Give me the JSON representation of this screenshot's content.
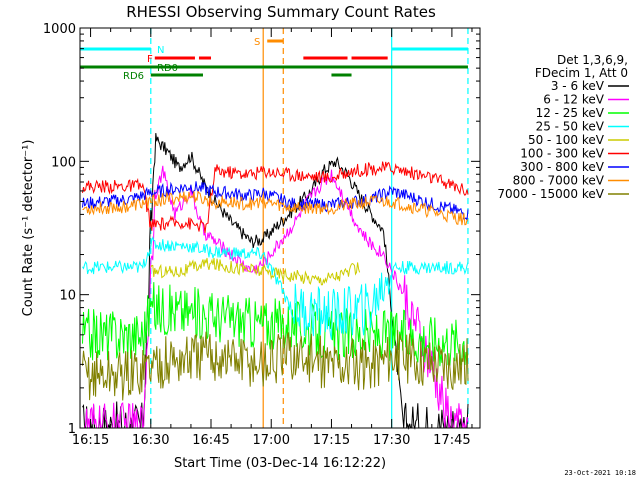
{
  "chart_data": {
    "type": "line",
    "title": "RHESSI Observing Summary Count Rates",
    "xlabel": "Start Time (03-Dec-14 16:12:22)",
    "ylabel": "Count Rate (s⁻¹ detector⁻¹)",
    "xlim": [
      "16:12:22",
      "17:52:00"
    ],
    "ylim": [
      1,
      1000
    ],
    "yscale": "log",
    "x_ticks": [
      "16:15",
      "16:30",
      "16:45",
      "17:00",
      "17:15",
      "17:30",
      "17:45"
    ],
    "y_ticks": [
      "1",
      "10",
      "100",
      "1000"
    ],
    "footer_date": "23-Oct-2021 10:18",
    "legend_header": [
      "Det 1,3,6,9,",
      "FDecim 1, Att 0"
    ],
    "legend_placement": "right",
    "series": [
      {
        "name": "3 - 6 keV",
        "color": "#000000",
        "x": [
          "16:13",
          "16:20",
          "16:28",
          "16:31",
          "16:34",
          "16:37",
          "16:40",
          "16:43",
          "16:46",
          "16:50",
          "16:55",
          "16:58",
          "17:06",
          "17:10",
          "17:13",
          "17:16",
          "17:19",
          "17:22",
          "17:25",
          "17:28",
          "17:33",
          "17:45",
          "17:49"
        ],
        "values": [
          1,
          1,
          1,
          150,
          120,
          90,
          110,
          70,
          50,
          35,
          25,
          26,
          45,
          60,
          85,
          100,
          80,
          55,
          40,
          30,
          1,
          1,
          1
        ]
      },
      {
        "name": "6 - 12 keV",
        "color": "#ff00ff",
        "x": [
          "16:13",
          "16:20",
          "16:28",
          "16:31",
          "16:33",
          "16:36",
          "16:40",
          "16:43",
          "16:46",
          "16:50",
          "16:55",
          "16:58",
          "17:06",
          "17:09",
          "17:12",
          "17:15",
          "17:18",
          "17:21",
          "17:24",
          "17:28",
          "17:33",
          "17:45",
          "17:49"
        ],
        "values": [
          1,
          1,
          1,
          55,
          85,
          40,
          60,
          30,
          25,
          20,
          15,
          17,
          35,
          50,
          65,
          80,
          55,
          35,
          25,
          20,
          10,
          1,
          1
        ]
      },
      {
        "name": "12 - 25 keV",
        "color": "#00ff00",
        "x": [
          "16:13",
          "16:28",
          "16:30",
          "16:45",
          "16:58",
          "17:05",
          "17:13",
          "17:25",
          "17:30",
          "17:45",
          "17:49"
        ],
        "values": [
          5,
          5,
          8,
          7,
          6,
          6,
          5,
          5,
          5,
          4.5,
          4.5
        ]
      },
      {
        "name": "25 - 50 keV",
        "color": "#00ffff",
        "x": [
          "16:13",
          "16:28",
          "16:30",
          "16:40",
          "16:45",
          "16:58",
          "17:05",
          "17:15",
          "17:25",
          "17:30",
          "17:45",
          "17:49"
        ],
        "values": [
          16,
          16,
          24,
          23,
          21,
          20,
          8,
          7,
          8,
          16,
          16,
          16
        ]
      },
      {
        "name": "50 - 100 keV",
        "color": "#cccc00",
        "x": [
          "16:30",
          "16:38",
          "16:43",
          "16:45",
          "17:12",
          "17:17",
          "17:22"
        ],
        "values": [
          15,
          15,
          17,
          17,
          13,
          14,
          16
        ]
      },
      {
        "name": "100 - 300 keV",
        "color": "#ff0000",
        "x": [
          "16:13",
          "16:28",
          "16:30",
          "16:38",
          "16:44",
          "16:46",
          "16:55",
          "16:58",
          "17:05",
          "17:15",
          "17:20",
          "17:25",
          "17:30",
          "17:40",
          "17:49"
        ],
        "values": [
          65,
          65,
          33,
          35,
          32,
          85,
          80,
          85,
          80,
          75,
          85,
          88,
          90,
          75,
          60
        ]
      },
      {
        "name": "300 - 800 keV",
        "color": "#0000ff",
        "x": [
          "16:13",
          "16:25",
          "16:30",
          "16:40",
          "16:45",
          "16:55",
          "16:58",
          "17:05",
          "17:15",
          "17:25",
          "17:30",
          "17:40",
          "17:49"
        ],
        "values": [
          48,
          52,
          58,
          65,
          60,
          55,
          58,
          48,
          47,
          52,
          60,
          48,
          40
        ]
      },
      {
        "name": "800 - 7000 keV",
        "color": "#ff8c00",
        "x": [
          "16:13",
          "16:25",
          "16:30",
          "16:40",
          "16:45",
          "16:55",
          "16:58",
          "17:05",
          "17:15",
          "17:25",
          "17:30",
          "17:40",
          "17:49"
        ],
        "values": [
          44,
          46,
          50,
          55,
          50,
          48,
          50,
          45,
          45,
          50,
          50,
          42,
          36
        ]
      },
      {
        "name": "7000 - 15000 keV",
        "color": "#808000",
        "x": [
          "16:13",
          "16:25",
          "16:30",
          "16:45",
          "16:58",
          "17:05",
          "17:15",
          "17:25",
          "17:30",
          "17:45",
          "17:49"
        ],
        "values": [
          2.5,
          2.5,
          3,
          3.5,
          3,
          3.5,
          3,
          3,
          3.5,
          3,
          3
        ]
      }
    ],
    "flags": [
      {
        "name": "N",
        "color": "#00ffff",
        "segments": [
          [
            "16:12:22",
            "16:30"
          ],
          [
            "17:30",
            "17:49"
          ]
        ]
      },
      {
        "name": "F",
        "color": "#ff0000",
        "segments": [
          [
            "16:31",
            "16:41"
          ],
          [
            "16:42",
            "16:45"
          ],
          [
            "17:08",
            "17:19"
          ],
          [
            "17:20",
            "17:29"
          ]
        ]
      },
      {
        "name": "S",
        "color": "#ff8c00",
        "segments": [
          [
            "16:59",
            "17:03"
          ]
        ]
      },
      {
        "name": "RD0",
        "color": "#008000",
        "segments": [
          [
            "16:12:22",
            "17:49"
          ]
        ]
      },
      {
        "name": "RD6",
        "color": "#008000",
        "segments": [
          [
            "16:30",
            "16:43"
          ],
          [
            "17:15",
            "17:20"
          ]
        ]
      }
    ],
    "vlines": [
      {
        "time": "16:30",
        "color": "#00ffff",
        "style": "dashed"
      },
      {
        "time": "16:58",
        "color": "#ff8c00",
        "style": "solid"
      },
      {
        "time": "17:03",
        "color": "#ff8c00",
        "style": "dashed"
      },
      {
        "time": "17:30",
        "color": "#00ffff",
        "style": "solid"
      },
      {
        "time": "17:49",
        "color": "#00ffff",
        "style": "dashed"
      }
    ]
  }
}
